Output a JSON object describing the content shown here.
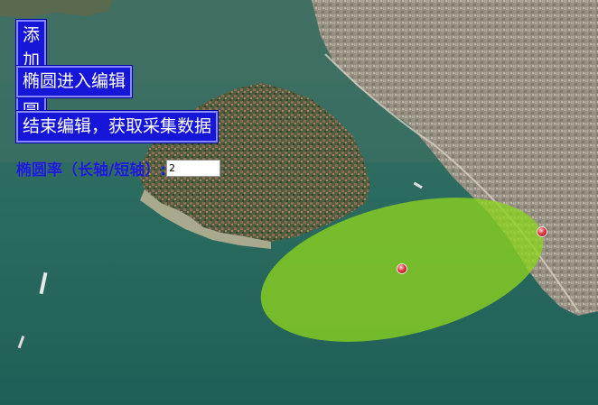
{
  "buttons": {
    "add_ellipse": "添加椭圆",
    "edit_ellipse": "椭圆进入编辑",
    "finish_edit": "结束编辑，获取采集数据"
  },
  "ratio": {
    "label": "椭圆率（长轴/短轴）:",
    "value": "2"
  },
  "colors": {
    "button_bg": "#1616d8",
    "button_text": "#ffffff",
    "label_text": "#1a1ad8",
    "ellipse_fill": "#8cd41e",
    "edit_point": "#e0404a"
  },
  "icons": {
    "center_point": "edit-point-icon",
    "axis_point": "edit-point-icon"
  }
}
